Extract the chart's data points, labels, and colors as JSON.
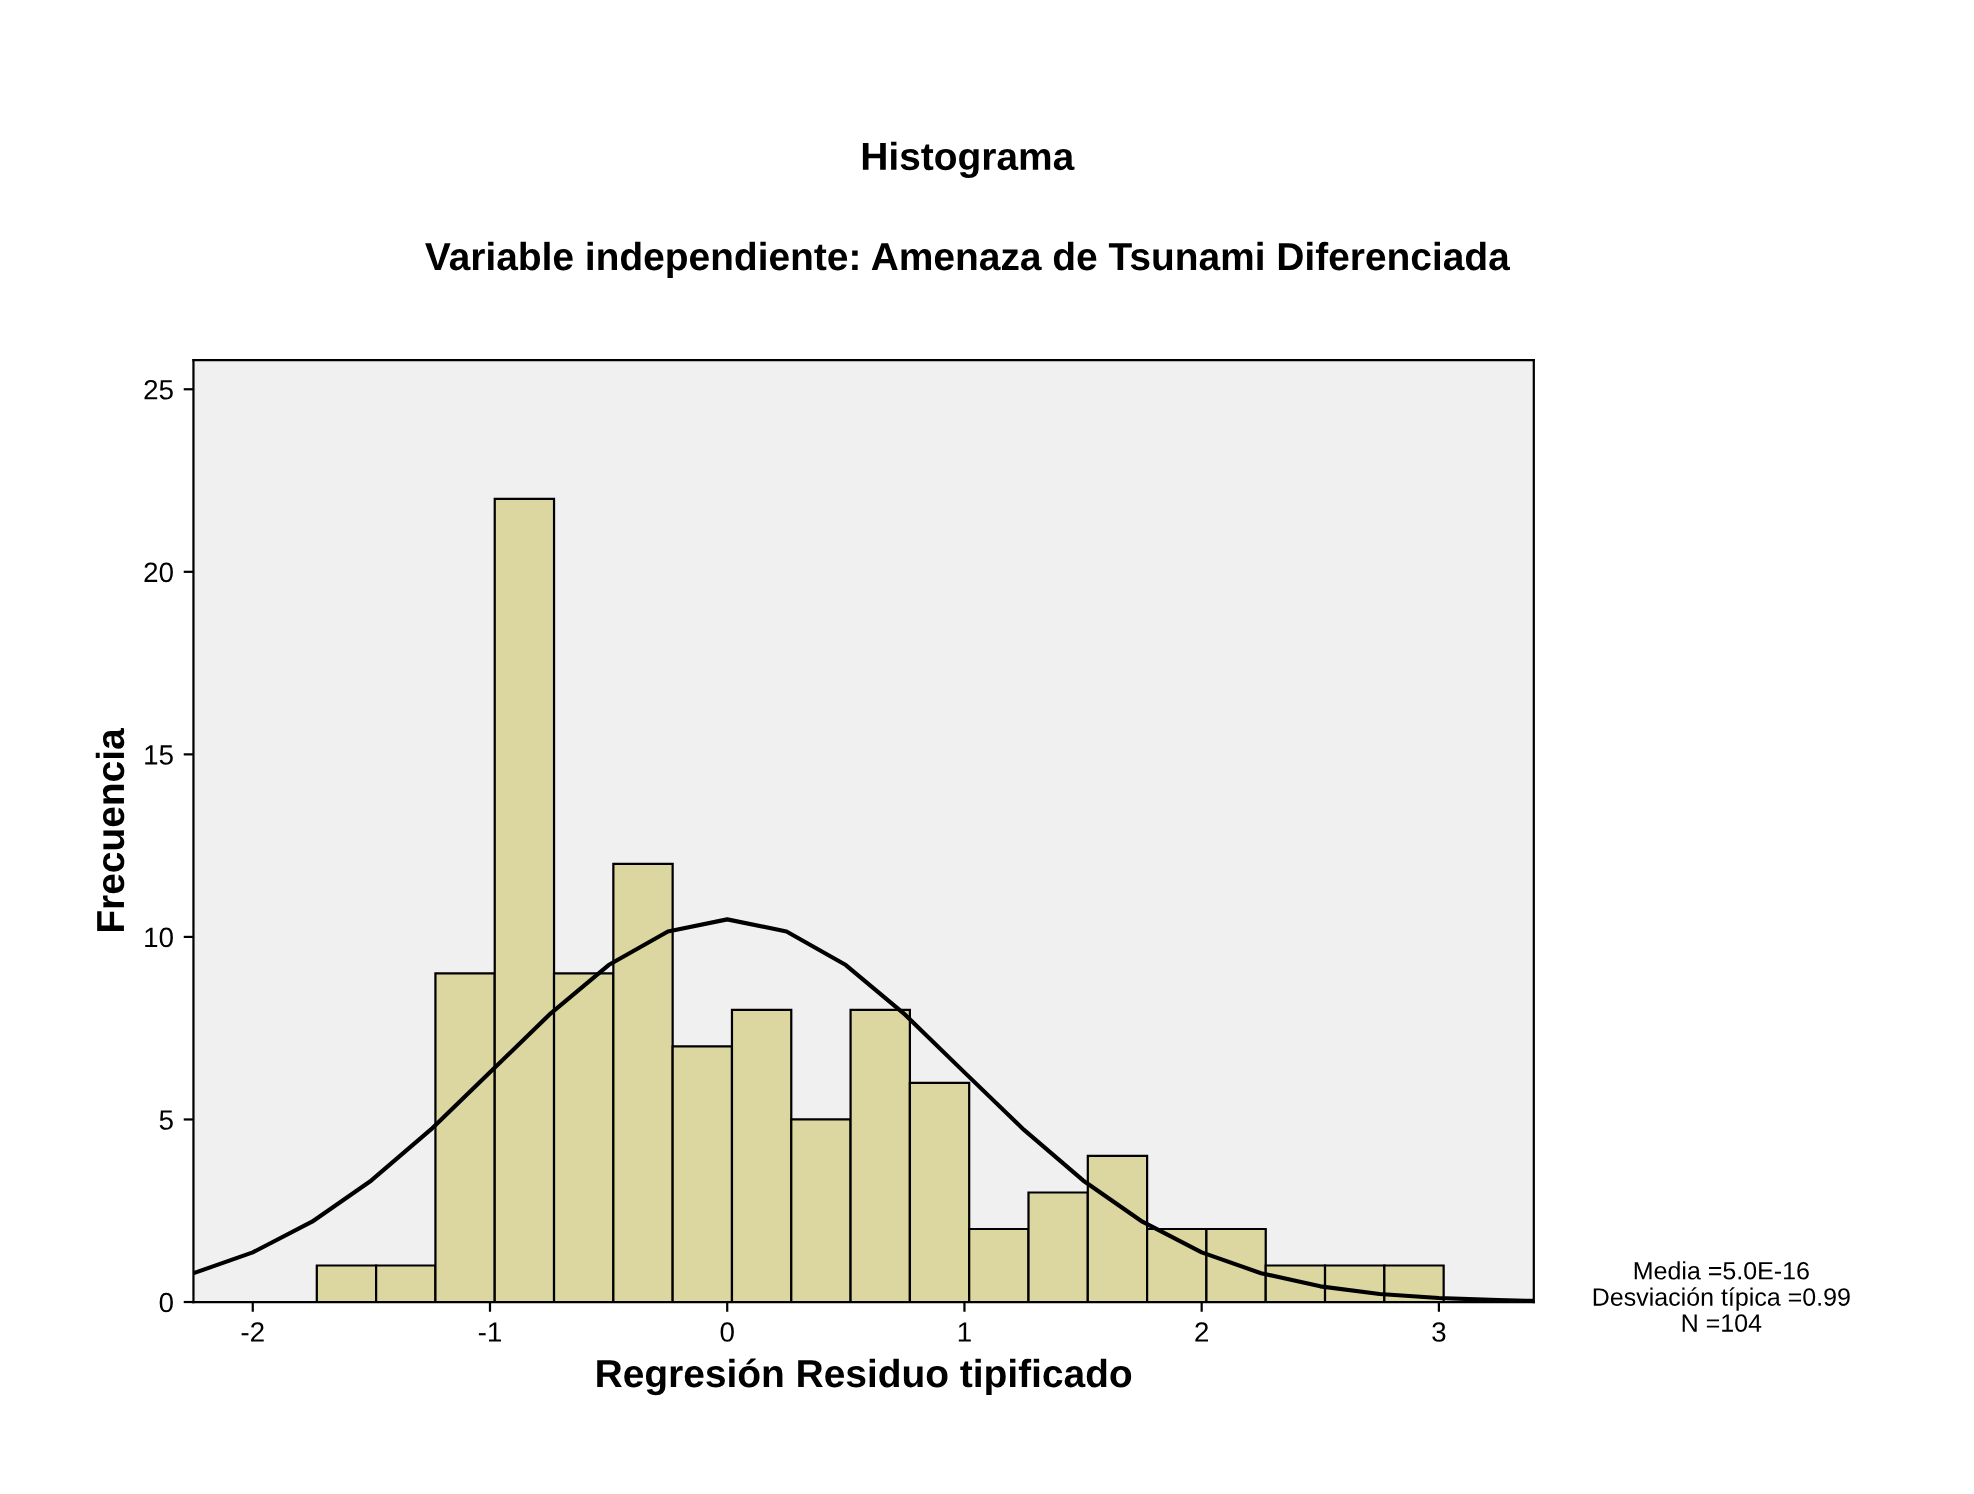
{
  "chart_data": {
    "type": "histogram",
    "title": "Histograma",
    "subtitle": "Variable independiente: Amenaza de Tsunami Diferenciada",
    "xlabel": "Regresión Residuo tipificado",
    "ylabel": "Frecuencia",
    "bins": [
      -1.73,
      -1.48,
      -1.23,
      -0.98,
      -0.73,
      -0.48,
      -0.23,
      0.02,
      0.27,
      0.52,
      0.77,
      1.02,
      1.27,
      1.52,
      1.77,
      2.02,
      2.27,
      2.52,
      2.77,
      3.02
    ],
    "values": [
      1,
      1,
      9,
      22,
      9,
      12,
      7,
      8,
      5,
      8,
      6,
      2,
      3,
      4,
      2,
      2,
      1,
      1,
      1
    ],
    "color": "#dcd7a0",
    "series": [
      {
        "type": "line",
        "color": "#000000",
        "x": [
          -2.25,
          -2.0,
          -1.75,
          -1.5,
          -1.25,
          -1.0,
          -0.75,
          -0.5,
          -0.25,
          0,
          0.25,
          0.5,
          0.75,
          1.0,
          1.25,
          1.5,
          1.75,
          2.0,
          2.25,
          2.5,
          2.75,
          3.0,
          3.25,
          3.4
        ],
        "values": [
          0.79,
          1.36,
          2.2,
          3.33,
          4.72,
          6.29,
          7.87,
          9.23,
          10.15,
          10.48,
          10.15,
          9.23,
          7.87,
          6.29,
          4.72,
          3.33,
          2.2,
          1.36,
          0.79,
          0.43,
          0.22,
          0.11,
          0.05,
          0.03
        ]
      }
    ],
    "xlim": [
      -2.25,
      3.4
    ],
    "ylim": [
      0,
      25.8
    ],
    "xticks": [
      -2,
      -1,
      0,
      1,
      2,
      3
    ],
    "yticks": [
      0,
      5,
      10,
      15,
      20,
      25
    ],
    "grid": false,
    "legend": false,
    "annotations": [
      "Media =5.0E-16",
      "Desviación típica =0.99",
      "N =104"
    ]
  }
}
